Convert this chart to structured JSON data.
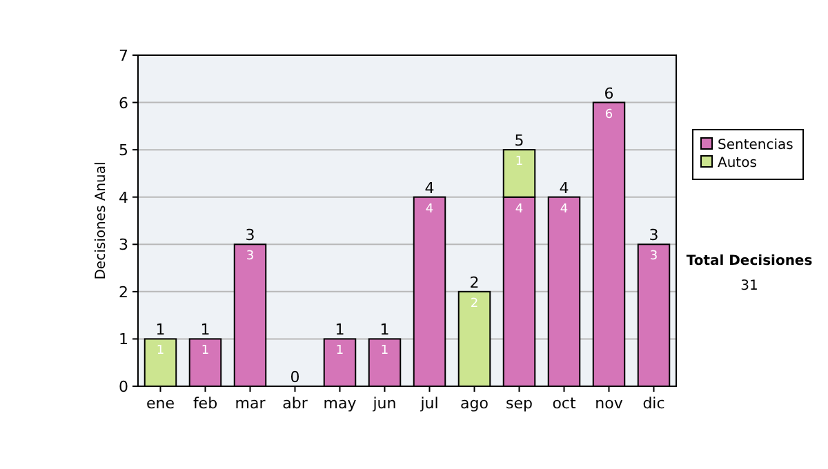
{
  "chart_data": {
    "type": "bar",
    "stacked": true,
    "ylabel": "Decisiones Anual",
    "categories": [
      "ene",
      "feb",
      "mar",
      "abr",
      "may",
      "jun",
      "jul",
      "ago",
      "sep",
      "oct",
      "nov",
      "dic"
    ],
    "series": [
      {
        "name": "Sentencias",
        "color": "#d575b8",
        "values": [
          0,
          1,
          3,
          0,
          1,
          1,
          4,
          0,
          4,
          4,
          6,
          3
        ],
        "value_labels": [
          null,
          "1",
          "3",
          null,
          "1",
          "1",
          "4",
          null,
          "4",
          "4",
          "6",
          "3"
        ]
      },
      {
        "name": "Autos",
        "color": "#cce590",
        "values": [
          1,
          0,
          0,
          0,
          0,
          0,
          0,
          2,
          1,
          0,
          0,
          0
        ],
        "value_labels": [
          "1",
          null,
          null,
          null,
          null,
          null,
          null,
          "2",
          "1",
          null,
          null,
          null
        ]
      }
    ],
    "ylim": [
      0,
      7
    ],
    "yticks": [
      0,
      1,
      2,
      3,
      4,
      5,
      6,
      7
    ],
    "grid": "y",
    "legend": "right",
    "totals": [
      "1",
      "1",
      "3",
      "0",
      "1",
      "1",
      "4",
      "2",
      "5",
      "4",
      "6",
      "3"
    ],
    "annotations": [
      "Total Decisiones",
      "31"
    ]
  }
}
